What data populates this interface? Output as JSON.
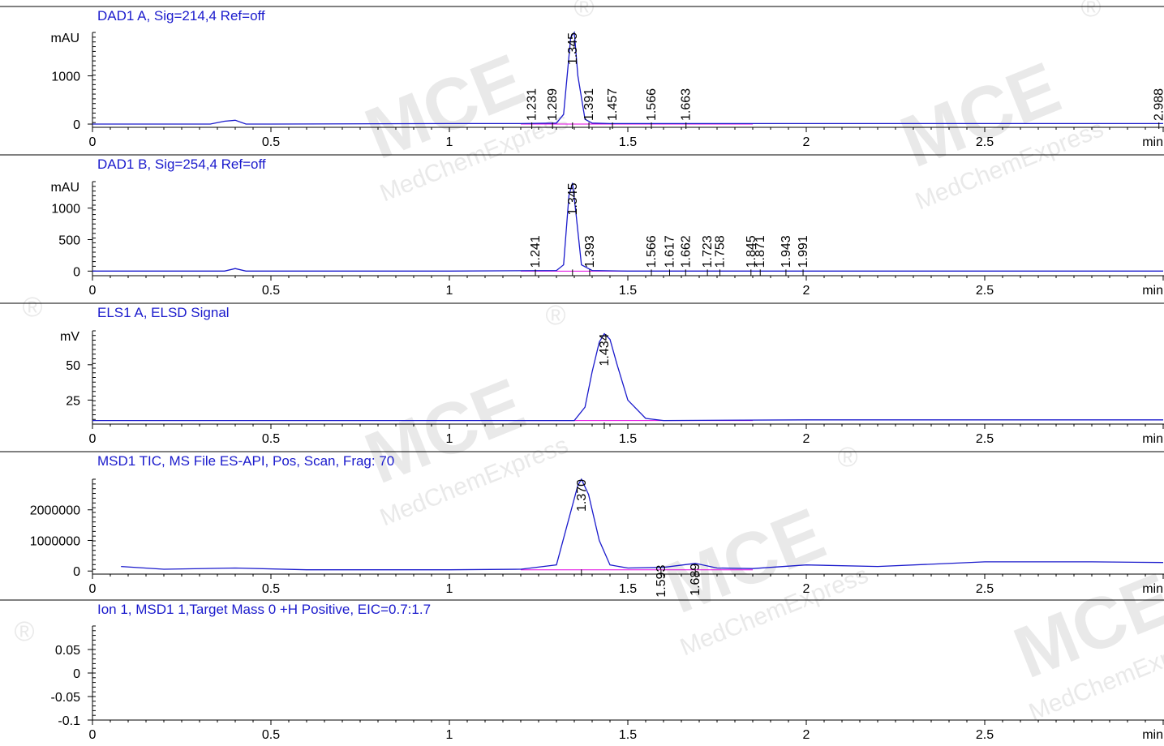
{
  "watermark": {
    "brand": "MCE",
    "sub": "MedChemExpress",
    "mark": "®"
  },
  "colors": {
    "trace": "#1a1acc",
    "baseline": "#e000e0",
    "axis": "#000000",
    "title": "#1a1acc",
    "watermark": "#d8d8d8"
  },
  "chart_data": [
    {
      "type": "line",
      "title": "DAD1 A, Sig=214,4 Ref=off",
      "ylabel": "mAU",
      "xlabel": "min",
      "xlim": [
        0,
        3.0
      ],
      "ylim": [
        -50,
        1900
      ],
      "yticks": [
        0,
        1000
      ],
      "xticks": [
        0,
        0.5,
        1,
        1.5,
        2,
        2.5
      ],
      "peaks": [
        {
          "rt": 1.231,
          "height": 0,
          "label": "1.231"
        },
        {
          "rt": 1.289,
          "height": 0,
          "label": "1.289"
        },
        {
          "rt": 1.345,
          "height": 1900,
          "label": "1.345"
        },
        {
          "rt": 1.391,
          "height": 0,
          "label": "1.391"
        },
        {
          "rt": 1.457,
          "height": 0,
          "label": "1.457"
        },
        {
          "rt": 1.566,
          "height": 0,
          "label": "1.566"
        },
        {
          "rt": 1.663,
          "height": 0,
          "label": "1.663"
        },
        {
          "rt": 2.988,
          "height": 0,
          "label": "2.988"
        }
      ],
      "series": [
        {
          "x": [
            0,
            0.33,
            0.37,
            0.4,
            0.43,
            0.5,
            1.0,
            1.2,
            1.3,
            1.32,
            1.34,
            1.35,
            1.36,
            1.38,
            1.4,
            1.45,
            1.6,
            2.0,
            2.5,
            3.0
          ],
          "y": [
            0,
            0,
            60,
            80,
            0,
            0,
            10,
            10,
            20,
            200,
            1800,
            1900,
            1000,
            100,
            20,
            10,
            10,
            10,
            10,
            10
          ]
        }
      ]
    },
    {
      "type": "line",
      "title": "DAD1 B, Sig=254,4 Ref=off",
      "ylabel": "mAU",
      "xlabel": "min",
      "xlim": [
        0,
        3.0
      ],
      "ylim": [
        -60,
        1420
      ],
      "yticks": [
        0,
        500,
        1000
      ],
      "xticks": [
        0,
        0.5,
        1,
        1.5,
        2,
        2.5
      ],
      "peaks": [
        {
          "rt": 1.241,
          "height": 0,
          "label": "1.241"
        },
        {
          "rt": 1.345,
          "height": 1400,
          "label": "1.345"
        },
        {
          "rt": 1.393,
          "height": 0,
          "label": "1.393"
        },
        {
          "rt": 1.566,
          "height": 0,
          "label": "1.566"
        },
        {
          "rt": 1.617,
          "height": 0,
          "label": "1.617"
        },
        {
          "rt": 1.662,
          "height": 0,
          "label": "1.662"
        },
        {
          "rt": 1.723,
          "height": 0,
          "label": "1.723"
        },
        {
          "rt": 1.758,
          "height": 0,
          "label": "1.758"
        },
        {
          "rt": 1.845,
          "height": 0,
          "label": "1.845"
        },
        {
          "rt": 1.871,
          "height": 0,
          "label": "1.871"
        },
        {
          "rt": 1.943,
          "height": 0,
          "label": "1.943"
        },
        {
          "rt": 1.991,
          "height": 0,
          "label": "1.991"
        }
      ],
      "series": [
        {
          "x": [
            0,
            0.37,
            0.4,
            0.43,
            0.5,
            1.0,
            1.3,
            1.32,
            1.335,
            1.345,
            1.355,
            1.37,
            1.4,
            1.5,
            2.0,
            2.5,
            3.0
          ],
          "y": [
            0,
            0,
            40,
            0,
            0,
            0,
            10,
            100,
            1200,
            1400,
            900,
            100,
            10,
            0,
            0,
            0,
            0
          ]
        }
      ]
    },
    {
      "type": "line",
      "title": "ELS1 A, ELSD Signal",
      "ylabel": "mV",
      "xlabel": "min",
      "xlim": [
        0,
        3.0
      ],
      "ylim": [
        8,
        74
      ],
      "yticks": [
        25,
        50
      ],
      "xticks": [
        0,
        0.5,
        1,
        1.5,
        2,
        2.5
      ],
      "peaks": [
        {
          "rt": 1.434,
          "height": 72,
          "label": "1.434"
        }
      ],
      "series": [
        {
          "x": [
            0,
            0.5,
            1.0,
            1.35,
            1.38,
            1.4,
            1.42,
            1.434,
            1.45,
            1.47,
            1.5,
            1.55,
            1.6,
            2.0,
            2.5,
            3.0
          ],
          "y": [
            10.5,
            10.5,
            10.5,
            10.5,
            20,
            45,
            66,
            72,
            68,
            50,
            25,
            12,
            10.5,
            11,
            11,
            11
          ]
        }
      ]
    },
    {
      "type": "line",
      "title": "MSD1 TIC, MS File    ES-API, Pos, Scan, Frag: 70",
      "ylabel": "",
      "xlabel": "min",
      "xlim": [
        0,
        3.0
      ],
      "ylim": [
        -100000,
        3000000
      ],
      "yticks": [
        0,
        1000000,
        2000000
      ],
      "xticks": [
        0,
        0.5,
        1,
        1.5,
        2,
        2.5
      ],
      "peaks": [
        {
          "rt": 1.37,
          "height": 3000000,
          "label": "1.370"
        },
        {
          "rt": 1.593,
          "height": 200000,
          "label": "1.593"
        },
        {
          "rt": 1.689,
          "height": 250000,
          "label": "1.689"
        }
      ],
      "series": [
        {
          "x": [
            0.08,
            0.2,
            0.4,
            0.6,
            1.0,
            1.2,
            1.3,
            1.33,
            1.36,
            1.37,
            1.39,
            1.42,
            1.45,
            1.5,
            1.6,
            1.689,
            1.75,
            1.85,
            2.0,
            2.2,
            2.5,
            2.8,
            3.0
          ],
          "y": [
            150000,
            60000,
            100000,
            40000,
            40000,
            60000,
            200000,
            1500000,
            2800000,
            3000000,
            2500000,
            1000000,
            200000,
            100000,
            120000,
            250000,
            100000,
            80000,
            200000,
            150000,
            300000,
            300000,
            280000
          ]
        }
      ]
    },
    {
      "type": "line",
      "title": "Ion 1, MSD1 1,Target Mass 0 +H Positive, EIC=0.7:1.7",
      "ylabel": "",
      "xlabel": "min",
      "xlim": [
        0,
        3.0
      ],
      "ylim": [
        -0.1,
        0.1
      ],
      "yticks": [
        -0.1,
        -0.05,
        0,
        0.05
      ],
      "xticks": [
        0,
        0.5,
        1,
        1.5,
        2,
        2.5
      ],
      "peaks": [],
      "series": []
    }
  ]
}
